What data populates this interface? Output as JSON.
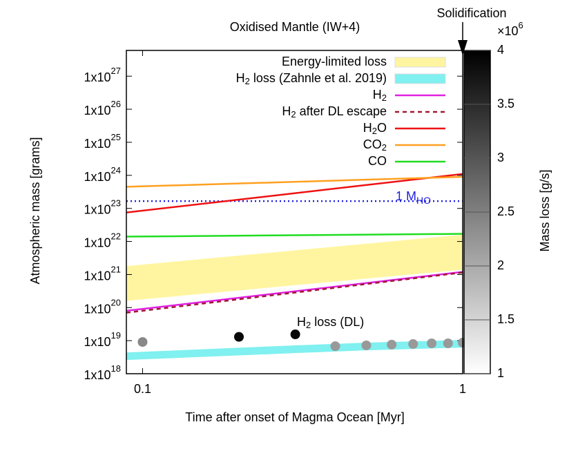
{
  "chart_data": {
    "type": "line",
    "title": "Oxidised Mantle (IW+4)",
    "xlabel": "Time after onset of Magma Ocean [Myr]",
    "ylabel": "Atmospheric mass [grams]",
    "log_x": true,
    "log_y": true,
    "xlim": [
      0.089,
      1
    ],
    "ylim": [
      1e+18,
      6e+27
    ],
    "xticks": [
      0.1,
      1
    ],
    "yticks": [
      {
        "value": 1e+18,
        "label": "1x10",
        "exponent": "18"
      },
      {
        "value": 1e+19,
        "label": "1x10",
        "exponent": "19"
      },
      {
        "value": 1e+20,
        "label": "1x10",
        "exponent": "20"
      },
      {
        "value": 1e+21,
        "label": "1x10",
        "exponent": "21"
      },
      {
        "value": 1e+22,
        "label": "1x10",
        "exponent": "22"
      },
      {
        "value": 1e+23,
        "label": "1x10",
        "exponent": "23"
      },
      {
        "value": 1e+24,
        "label": "1x10",
        "exponent": "24"
      },
      {
        "value": 1e+25,
        "label": "1x10",
        "exponent": "25"
      },
      {
        "value": 1e+26,
        "label": "1x10",
        "exponent": "26"
      },
      {
        "value": 1e+27,
        "label": "1x10",
        "exponent": "27"
      }
    ],
    "legend": "upper right",
    "bands": [
      {
        "name": "Energy-limited loss",
        "color": "#fff5a0",
        "x": [
          0.089,
          1
        ],
        "lower": [
          1.6e+20,
          1.4e+21
        ],
        "upper": [
          1.8e+21,
          1.6e+22
        ]
      },
      {
        "name": "H2 loss (Zahnle et al. 2019)",
        "color": "#80f0f0",
        "x": [
          0.089,
          0.3,
          0.5,
          1
        ],
        "lower": [
          2.6e+18,
          4.2e+18,
          5.1e+18,
          6.2e+18
        ],
        "upper": [
          4.4e+18,
          7.2e+18,
          8.7e+18,
          1.05e+19
        ]
      }
    ],
    "series": [
      {
        "name": "H2",
        "color": "#e020e0",
        "dash": "solid",
        "x": [
          0.089,
          1
        ],
        "values": [
          8e+19,
          1.2e+21
        ]
      },
      {
        "name": "H2 after DL escape",
        "color": "#a01830",
        "dash": "dashed",
        "x": [
          0.089,
          1
        ],
        "values": [
          7e+19,
          1.15e+21
        ]
      },
      {
        "name": "H2O",
        "color": "#ee1111",
        "dash": "solid",
        "x": [
          0.089,
          1
        ],
        "values": [
          7.5e+22,
          1.1e+24
        ]
      },
      {
        "name": "CO2",
        "color": "#ffa020",
        "dash": "solid",
        "x": [
          0.089,
          1
        ],
        "values": [
          4.5e+23,
          9e+23
        ]
      },
      {
        "name": "CO",
        "color": "#20dd20",
        "dash": "solid",
        "x": [
          0.089,
          1
        ],
        "values": [
          1.4e+22,
          1.7e+22
        ]
      }
    ],
    "reference_line": {
      "label": "1 M",
      "label_sub": "HO",
      "value": 1.66e+23,
      "color": "#2020e0"
    },
    "scatter": {
      "name": "H2 loss (DL)",
      "x": [
        0.1,
        0.2,
        0.3,
        0.4,
        0.5,
        0.6,
        0.7,
        0.8,
        0.9,
        1
      ],
      "values": [
        9.1e+18,
        1.3e+19,
        1.55e+19,
        6.8e+18,
        7.2e+18,
        7.6e+18,
        7.9e+18,
        8.3e+18,
        8.3e+18,
        8.7e+18
      ],
      "mass_loss": [
        2.4,
        3.9,
        3.9,
        2.2,
        2.2,
        2.2,
        2.2,
        2.2,
        2.2,
        2.2
      ]
    },
    "annotation": "Solidification",
    "colorbar": {
      "label": "Mass loss [g/s]",
      "lim": [
        1,
        4
      ],
      "ticks": [
        1,
        1.5,
        2,
        2.5,
        3,
        3.5,
        4
      ],
      "multiplier": "×10",
      "multiplier_exponent": "6"
    }
  }
}
